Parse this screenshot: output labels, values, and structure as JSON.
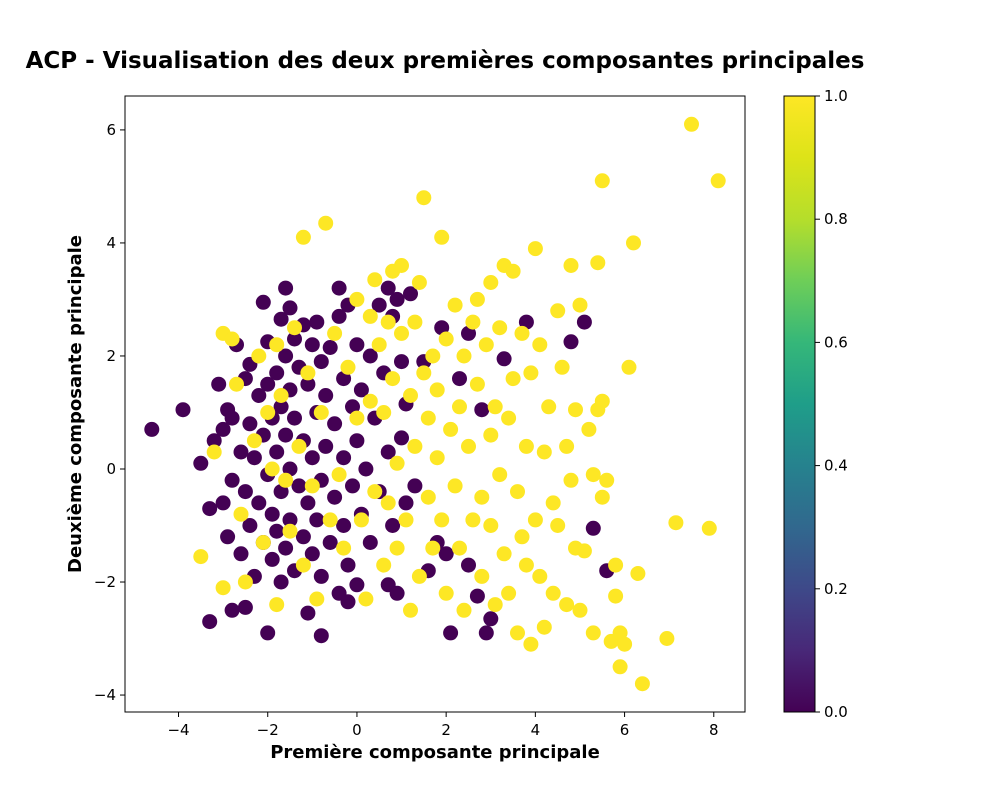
{
  "chart_data": {
    "type": "scatter",
    "title": "ACP - Visualisation des deux premières composantes principales",
    "xlabel": "Première composante principale",
    "ylabel": "Deuxième composante principale",
    "xlim": [
      -5.2,
      8.7
    ],
    "ylim": [
      -4.3,
      6.6
    ],
    "xticks": [
      -4,
      -2,
      0,
      2,
      4,
      6,
      8
    ],
    "yticks": [
      -4,
      -2,
      0,
      2,
      4,
      6
    ],
    "xtick_labels": [
      "−4",
      "−2",
      "0",
      "2",
      "4",
      "6",
      "8"
    ],
    "ytick_labels": [
      "−4",
      "−2",
      "0",
      "2",
      "4",
      "6"
    ],
    "grid": false,
    "colormap": "viridis",
    "colorbar": {
      "range": [
        0.0,
        1.0
      ],
      "ticks": [
        0.0,
        0.2,
        0.4,
        0.6,
        0.8,
        1.0
      ],
      "tick_labels": [
        "0.0",
        "0.2",
        "0.4",
        "0.6",
        "0.8",
        "1.0"
      ]
    },
    "colors": {
      "class_0": "#440154",
      "class_1": "#fde725"
    },
    "series": [
      {
        "value": 0,
        "points": [
          [
            -4.6,
            0.7
          ],
          [
            -3.9,
            1.05
          ],
          [
            -3.5,
            0.1
          ],
          [
            -3.3,
            -2.7
          ],
          [
            -3.3,
            -0.7
          ],
          [
            -3.2,
            0.5
          ],
          [
            -3.1,
            1.5
          ],
          [
            -3.0,
            0.7
          ],
          [
            -3.0,
            -0.6
          ],
          [
            -2.9,
            1.05
          ],
          [
            -2.9,
            -1.2
          ],
          [
            -2.8,
            -0.2
          ],
          [
            -2.8,
            0.9
          ],
          [
            -2.8,
            -2.5
          ],
          [
            -2.7,
            2.2
          ],
          [
            -2.6,
            0.3
          ],
          [
            -2.6,
            -1.5
          ],
          [
            -2.5,
            1.6
          ],
          [
            -2.5,
            -0.4
          ],
          [
            -2.5,
            -2.45
          ],
          [
            -2.4,
            1.85
          ],
          [
            -2.4,
            0.8
          ],
          [
            -2.4,
            -1.0
          ],
          [
            -2.3,
            0.2
          ],
          [
            -2.3,
            -1.9
          ],
          [
            -2.2,
            1.3
          ],
          [
            -2.2,
            -0.6
          ],
          [
            -2.1,
            2.95
          ],
          [
            -2.1,
            0.6
          ],
          [
            -2.1,
            -1.3
          ],
          [
            -2.0,
            -2.9
          ],
          [
            -2.0,
            2.25
          ],
          [
            -2.0,
            1.5
          ],
          [
            -2.0,
            -0.1
          ],
          [
            -1.9,
            0.9
          ],
          [
            -1.9,
            -0.8
          ],
          [
            -1.9,
            -1.6
          ],
          [
            -1.8,
            1.7
          ],
          [
            -1.8,
            0.3
          ],
          [
            -1.8,
            -1.1
          ],
          [
            -1.7,
            2.65
          ],
          [
            -1.7,
            1.1
          ],
          [
            -1.7,
            -0.4
          ],
          [
            -1.7,
            -2.0
          ],
          [
            -1.6,
            3.2
          ],
          [
            -1.6,
            2.0
          ],
          [
            -1.6,
            0.6
          ],
          [
            -1.6,
            -1.4
          ],
          [
            -1.5,
            2.85
          ],
          [
            -1.5,
            1.4
          ],
          [
            -1.5,
            0.0
          ],
          [
            -1.5,
            -0.9
          ],
          [
            -1.4,
            2.3
          ],
          [
            -1.4,
            0.9
          ],
          [
            -1.4,
            -1.8
          ],
          [
            -1.3,
            1.8
          ],
          [
            -1.3,
            -0.3
          ],
          [
            -1.2,
            2.55
          ],
          [
            -1.2,
            0.5
          ],
          [
            -1.2,
            -1.2
          ],
          [
            -1.1,
            -2.55
          ],
          [
            -1.1,
            1.5
          ],
          [
            -1.1,
            -0.6
          ],
          [
            -1.0,
            2.2
          ],
          [
            -1.0,
            0.2
          ],
          [
            -1.0,
            -1.5
          ],
          [
            -0.9,
            2.6
          ],
          [
            -0.9,
            1.0
          ],
          [
            -0.9,
            -0.9
          ],
          [
            -0.8,
            -2.95
          ],
          [
            -0.8,
            1.9
          ],
          [
            -0.8,
            -0.2
          ],
          [
            -0.8,
            -1.9
          ],
          [
            -0.7,
            1.3
          ],
          [
            -0.7,
            0.4
          ],
          [
            -0.6,
            2.15
          ],
          [
            -0.6,
            -1.3
          ],
          [
            -0.5,
            0.8
          ],
          [
            -0.5,
            -0.5
          ],
          [
            -0.4,
            3.2
          ],
          [
            -0.4,
            2.7
          ],
          [
            -0.4,
            -2.2
          ],
          [
            -0.3,
            1.6
          ],
          [
            -0.3,
            0.2
          ],
          [
            -0.3,
            -1.0
          ],
          [
            -0.2,
            2.9
          ],
          [
            -0.2,
            -2.35
          ],
          [
            -0.2,
            -1.7
          ],
          [
            -0.1,
            1.1
          ],
          [
            -0.1,
            -0.3
          ],
          [
            0.0,
            2.2
          ],
          [
            0.0,
            0.5
          ],
          [
            0.0,
            -2.05
          ],
          [
            0.1,
            1.4
          ],
          [
            0.1,
            -0.8
          ],
          [
            0.2,
            0.0
          ],
          [
            0.3,
            2.0
          ],
          [
            0.3,
            -1.3
          ],
          [
            0.4,
            0.9
          ],
          [
            0.5,
            2.9
          ],
          [
            0.5,
            -0.4
          ],
          [
            0.6,
            1.7
          ],
          [
            0.7,
            3.2
          ],
          [
            0.7,
            0.3
          ],
          [
            0.7,
            -2.05
          ],
          [
            0.8,
            2.7
          ],
          [
            0.8,
            -1.0
          ],
          [
            0.9,
            3.0
          ],
          [
            0.9,
            -2.2
          ],
          [
            1.0,
            0.55
          ],
          [
            1.0,
            1.9
          ],
          [
            1.1,
            1.15
          ],
          [
            1.1,
            -0.6
          ],
          [
            1.2,
            3.1
          ],
          [
            1.3,
            -0.3
          ],
          [
            1.5,
            1.9
          ],
          [
            1.6,
            -1.8
          ],
          [
            1.8,
            -1.3
          ],
          [
            1.9,
            2.5
          ],
          [
            2.0,
            -1.5
          ],
          [
            2.1,
            -2.9
          ],
          [
            2.3,
            1.6
          ],
          [
            2.5,
            2.4
          ],
          [
            2.5,
            -1.7
          ],
          [
            2.7,
            -2.25
          ],
          [
            2.8,
            1.05
          ],
          [
            2.9,
            -2.9
          ],
          [
            3.0,
            -2.65
          ],
          [
            3.3,
            1.95
          ],
          [
            3.8,
            2.6
          ],
          [
            4.8,
            2.25
          ],
          [
            5.1,
            2.6
          ],
          [
            5.3,
            -1.05
          ],
          [
            5.6,
            -1.8
          ]
        ]
      },
      {
        "value": 1,
        "points": [
          [
            -3.5,
            -1.55
          ],
          [
            -3.2,
            0.3
          ],
          [
            -3.0,
            2.4
          ],
          [
            -3.0,
            -2.1
          ],
          [
            -2.8,
            2.3
          ],
          [
            -2.7,
            1.5
          ],
          [
            -2.6,
            -0.8
          ],
          [
            -2.5,
            -2.0
          ],
          [
            -2.3,
            0.5
          ],
          [
            -2.2,
            2.0
          ],
          [
            -2.1,
            -1.3
          ],
          [
            -2.0,
            1.0
          ],
          [
            -1.9,
            0.0
          ],
          [
            -1.8,
            2.2
          ],
          [
            -1.8,
            -2.4
          ],
          [
            -1.7,
            1.3
          ],
          [
            -1.6,
            -0.2
          ],
          [
            -1.5,
            -1.1
          ],
          [
            -1.4,
            2.5
          ],
          [
            -1.3,
            0.4
          ],
          [
            -1.2,
            4.1
          ],
          [
            -1.2,
            -1.7
          ],
          [
            -1.1,
            1.7
          ],
          [
            -1.0,
            -0.3
          ],
          [
            -0.9,
            -2.3
          ],
          [
            -0.8,
            1.0
          ],
          [
            -0.7,
            4.35
          ],
          [
            -0.6,
            -0.9
          ],
          [
            -0.5,
            2.4
          ],
          [
            -0.4,
            -0.1
          ],
          [
            -0.3,
            -1.4
          ],
          [
            -0.2,
            1.8
          ],
          [
            0.0,
            3.0
          ],
          [
            0.0,
            0.9
          ],
          [
            0.1,
            -0.9
          ],
          [
            0.2,
            -2.3
          ],
          [
            0.3,
            2.7
          ],
          [
            0.3,
            1.2
          ],
          [
            0.4,
            3.35
          ],
          [
            0.4,
            -0.4
          ],
          [
            0.5,
            2.2
          ],
          [
            0.6,
            -1.7
          ],
          [
            0.6,
            1.0
          ],
          [
            0.7,
            2.6
          ],
          [
            0.7,
            -0.6
          ],
          [
            0.8,
            3.5
          ],
          [
            0.8,
            1.6
          ],
          [
            0.9,
            -1.4
          ],
          [
            0.9,
            0.1
          ],
          [
            1.0,
            2.4
          ],
          [
            1.0,
            3.6
          ],
          [
            1.1,
            -0.9
          ],
          [
            1.2,
            1.3
          ],
          [
            1.2,
            -2.5
          ],
          [
            1.3,
            2.6
          ],
          [
            1.3,
            0.4
          ],
          [
            1.4,
            3.3
          ],
          [
            1.4,
            -1.9
          ],
          [
            1.5,
            4.8
          ],
          [
            1.5,
            1.7
          ],
          [
            1.6,
            -0.5
          ],
          [
            1.6,
            0.9
          ],
          [
            1.7,
            2.0
          ],
          [
            1.7,
            -1.4
          ],
          [
            1.8,
            0.2
          ],
          [
            1.8,
            1.4
          ],
          [
            1.9,
            4.1
          ],
          [
            1.9,
            -0.9
          ],
          [
            2.0,
            2.3
          ],
          [
            2.0,
            -2.2
          ],
          [
            2.1,
            0.7
          ],
          [
            2.2,
            -0.3
          ],
          [
            2.2,
            2.9
          ],
          [
            2.3,
            1.1
          ],
          [
            2.3,
            -1.4
          ],
          [
            2.4,
            2.0
          ],
          [
            2.4,
            -2.5
          ],
          [
            2.5,
            0.4
          ],
          [
            2.6,
            2.6
          ],
          [
            2.6,
            -0.9
          ],
          [
            2.7,
            1.5
          ],
          [
            2.7,
            3.0
          ],
          [
            2.8,
            -1.9
          ],
          [
            2.8,
            -0.5
          ],
          [
            2.9,
            2.2
          ],
          [
            3.0,
            0.6
          ],
          [
            3.0,
            -1.0
          ],
          [
            3.0,
            3.3
          ],
          [
            3.1,
            -2.4
          ],
          [
            3.1,
            1.1
          ],
          [
            3.2,
            2.5
          ],
          [
            3.2,
            -0.1
          ],
          [
            3.3,
            3.6
          ],
          [
            3.3,
            -1.5
          ],
          [
            3.4,
            0.9
          ],
          [
            3.4,
            -2.2
          ],
          [
            3.5,
            3.5
          ],
          [
            3.5,
            1.6
          ],
          [
            3.6,
            -0.4
          ],
          [
            3.6,
            -2.9
          ],
          [
            3.7,
            2.4
          ],
          [
            3.7,
            -1.2
          ],
          [
            3.8,
            0.4
          ],
          [
            3.8,
            -1.7
          ],
          [
            3.9,
            1.7
          ],
          [
            3.9,
            -3.1
          ],
          [
            4.0,
            3.9
          ],
          [
            4.0,
            -0.9
          ],
          [
            4.1,
            2.2
          ],
          [
            4.1,
            -1.9
          ],
          [
            4.2,
            0.3
          ],
          [
            4.2,
            -2.8
          ],
          [
            4.3,
            1.1
          ],
          [
            4.4,
            -0.6
          ],
          [
            4.4,
            -2.2
          ],
          [
            4.5,
            2.8
          ],
          [
            4.5,
            -1.0
          ],
          [
            4.6,
            1.8
          ],
          [
            4.7,
            0.4
          ],
          [
            4.7,
            -2.4
          ],
          [
            4.8,
            -0.2
          ],
          [
            4.8,
            3.6
          ],
          [
            4.9,
            1.05
          ],
          [
            4.9,
            -1.4
          ],
          [
            5.0,
            2.9
          ],
          [
            5.0,
            -2.5
          ],
          [
            5.1,
            -1.45
          ],
          [
            5.2,
            0.7
          ],
          [
            5.3,
            -2.9
          ],
          [
            5.3,
            -0.1
          ],
          [
            5.4,
            3.65
          ],
          [
            5.4,
            1.05
          ],
          [
            5.5,
            5.1
          ],
          [
            5.5,
            1.2
          ],
          [
            5.5,
            -0.5
          ],
          [
            5.6,
            -0.2
          ],
          [
            5.7,
            -3.05
          ],
          [
            5.8,
            -1.7
          ],
          [
            5.8,
            -2.25
          ],
          [
            5.9,
            -3.5
          ],
          [
            5.9,
            -2.9
          ],
          [
            6.0,
            -3.1
          ],
          [
            6.1,
            1.8
          ],
          [
            6.2,
            4.0
          ],
          [
            6.3,
            -1.85
          ],
          [
            6.4,
            -3.8
          ],
          [
            6.95,
            -3.0
          ],
          [
            7.15,
            -0.95
          ],
          [
            7.5,
            6.1
          ],
          [
            7.9,
            -1.05
          ],
          [
            8.1,
            5.1
          ]
        ]
      }
    ]
  }
}
